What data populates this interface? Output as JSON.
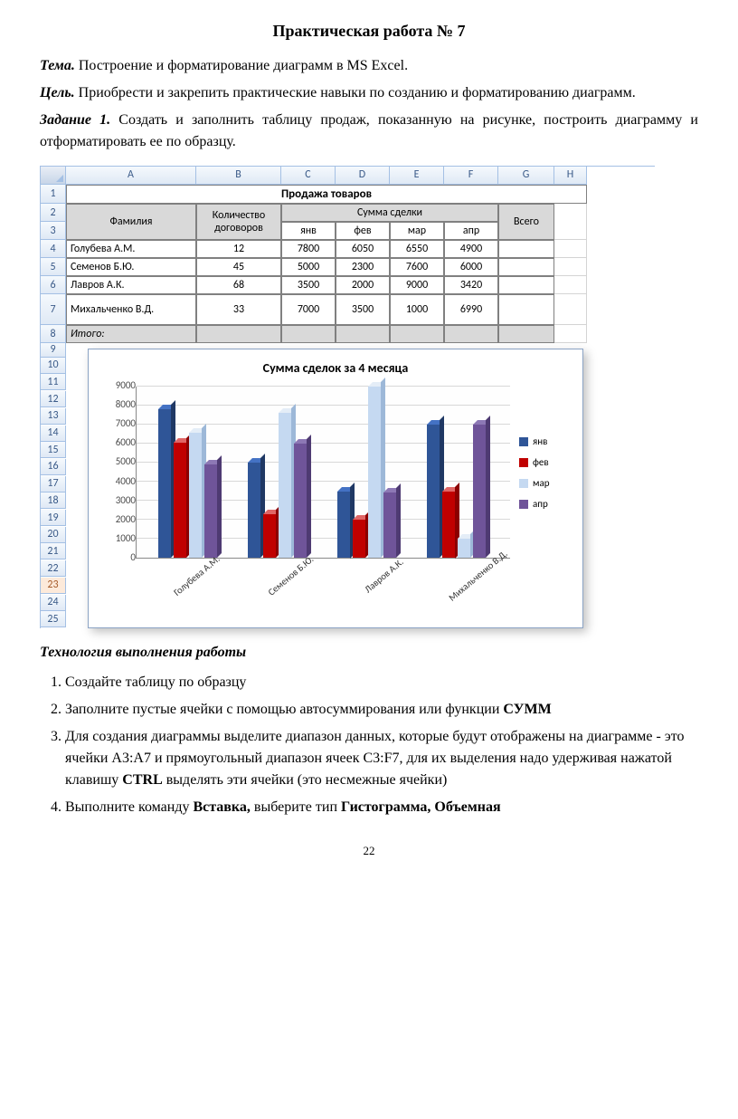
{
  "doc": {
    "title": "Практическая работа № 7",
    "tema_label": "Тема.",
    "tema_text": "  Построение и форматирование диаграмм в MS Excel.",
    "cel_label": "Цель.",
    "cel_text": " Приобрести и закрепить практические навыки по созданию и форматированию диаграмм.",
    "zad_label": "Задание 1.",
    "zad_text": " Создать и заполнить таблицу продаж, показанную на рисунке, построить диаграмму и отформатировать ее по образцу.",
    "tech_heading": "Технология выполнения работы",
    "page_number": "22"
  },
  "excel": {
    "col_headers": [
      "A",
      "B",
      "C",
      "D",
      "E",
      "F",
      "G",
      "H"
    ],
    "sel_row": "23",
    "table_title": "Продажа товаров",
    "h_fam": "Фамилия",
    "h_dog": "Количество договоров",
    "h_sum": "Сумма сделки",
    "h_total": "Всего",
    "months": [
      "янв",
      "фев",
      "мар",
      "апр"
    ],
    "rows": [
      {
        "n": "4",
        "name": "Голубева А.М.",
        "deals": "12",
        "vals": [
          "7800",
          "6050",
          "6550",
          "4900"
        ]
      },
      {
        "n": "5",
        "name": "Семенов Б.Ю.",
        "deals": "45",
        "vals": [
          "5000",
          "2300",
          "7600",
          "6000"
        ]
      },
      {
        "n": "6",
        "name": "Лавров А.К.",
        "deals": "68",
        "vals": [
          "3500",
          "2000",
          "9000",
          "3420"
        ]
      },
      {
        "n": "7",
        "name": "Михальченко В.Д.",
        "deals": "33",
        "vals": [
          "7000",
          "3500",
          "1000",
          "6990"
        ]
      }
    ],
    "itogo": "Итого:",
    "row_nums_rest": [
      "9",
      "10",
      "11",
      "12",
      "13",
      "14",
      "15",
      "16",
      "17",
      "18",
      "19",
      "20",
      "21",
      "22",
      "23",
      "24",
      "25"
    ]
  },
  "chart": {
    "title": "Сумма сделок за 4 месяца",
    "ymax": 9000,
    "ytick_step": 1000,
    "yticks": [
      "9000",
      "8000",
      "7000",
      "6000",
      "5000",
      "4000",
      "3000",
      "2000",
      "1000",
      "0"
    ],
    "series": [
      {
        "label": "янв",
        "color": "#2f5597",
        "top": "#4472c4",
        "side": "#1f3864"
      },
      {
        "label": "фев",
        "color": "#c00000",
        "top": "#e06666",
        "side": "#8b0000"
      },
      {
        "label": "мар",
        "color": "#c5d9f1",
        "top": "#e4edf7",
        "side": "#9db8d8"
      },
      {
        "label": "апр",
        "color": "#6f5499",
        "top": "#8d78b5",
        "side": "#4e3a72"
      }
    ],
    "categories": [
      "Голубева А.М.",
      "Семенов Б.Ю.",
      "Лавров А.К.",
      "Михальченко В.Д."
    ],
    "data": [
      [
        7800,
        6050,
        6550,
        4900
      ],
      [
        5000,
        2300,
        7600,
        6000
      ],
      [
        3500,
        2000,
        9000,
        3420
      ],
      [
        7000,
        3500,
        1000,
        6990
      ]
    ],
    "bg": "#ffffff",
    "grid_color": "#d8d8d8"
  },
  "steps": {
    "s1": "Создайте таблицу по образцу",
    "s2a": "Заполните пустые ячейки с помощью автосуммирования или функции ",
    "s2b": "СУММ",
    "s3a": "Для создания диаграммы выделите диапазон данных, которые будут отображены на диаграмме - это ячейки А3:А7 и прямоугольный диапазон ячеек C3:F7, для их выделения надо удерживая нажатой клавишу ",
    "s3b": "CTRL",
    "s3c": " выделять эти ячейки (это несмежные ячейки)",
    "s4a": "Выполните команду ",
    "s4b": "Вставка,",
    "s4c": " выберите тип ",
    "s4d": "Гистограмма, Объемная"
  }
}
